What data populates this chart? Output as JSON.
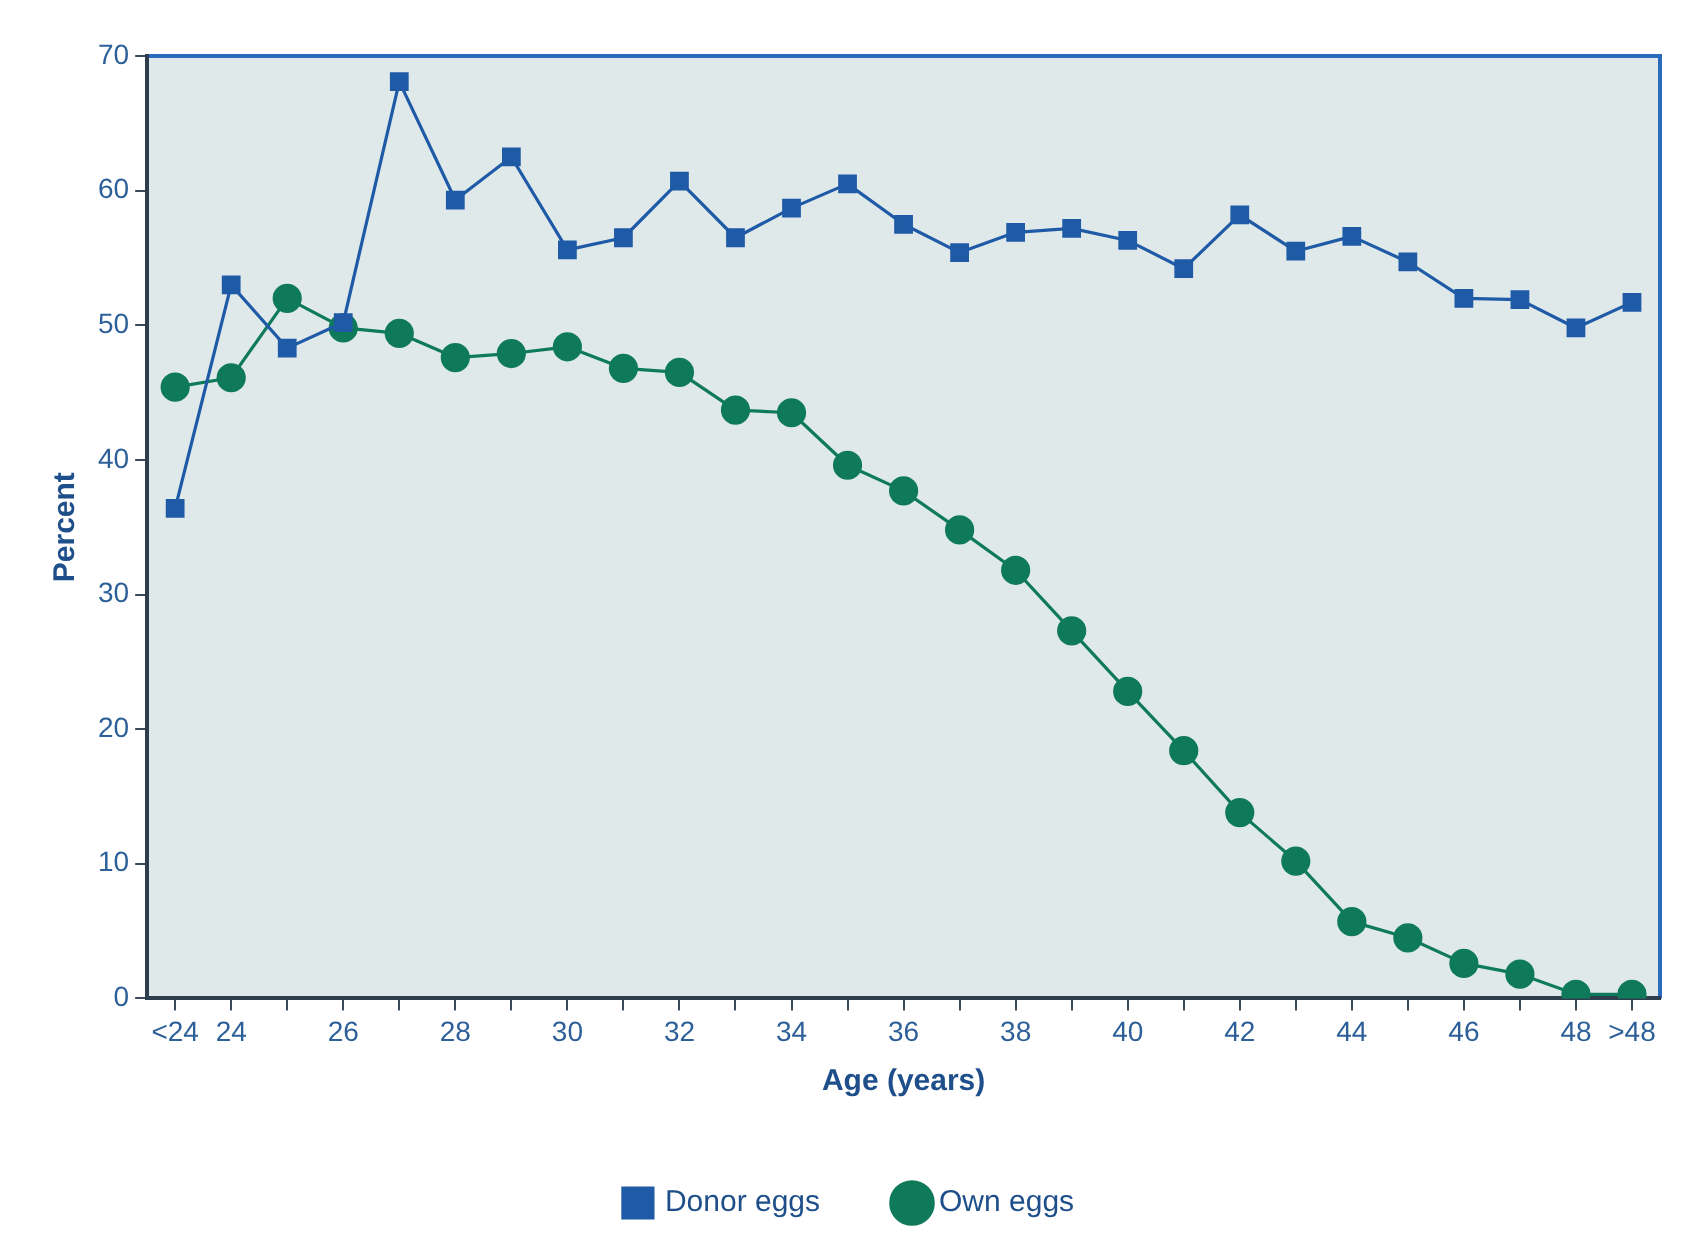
{
  "chart_data": {
    "type": "line",
    "xlabel": "Age (years)",
    "ylabel": "Percent",
    "categories": [
      "<24",
      "24",
      null,
      "26",
      null,
      "28",
      null,
      "30",
      null,
      "32",
      null,
      "34",
      null,
      "36",
      null,
      "38",
      null,
      "40",
      null,
      "42",
      null,
      "44",
      null,
      "46",
      null,
      "48",
      ">48"
    ],
    "ylim": [
      0,
      70
    ],
    "yticks": [
      0,
      10,
      20,
      30,
      40,
      50,
      60,
      70
    ],
    "grid": false,
    "legend": "bottom",
    "line_style": "solid",
    "series": [
      {
        "name": "Donor eggs",
        "color": "#1f5aa6",
        "marker": "square",
        "values": [
          36.4,
          53.0,
          48.3,
          50.2,
          68.1,
          59.3,
          62.5,
          55.6,
          56.5,
          60.7,
          56.5,
          58.7,
          60.5,
          57.5,
          55.4,
          56.9,
          57.2,
          56.3,
          54.2,
          58.2,
          55.5,
          56.6,
          54.7,
          52.0,
          51.9,
          49.8,
          51.7
        ]
      },
      {
        "name": "Own eggs",
        "color": "#0f7a5a",
        "marker": "circle",
        "values": [
          45.4,
          46.1,
          52.0,
          49.8,
          49.4,
          47.6,
          47.9,
          48.4,
          46.8,
          46.5,
          43.7,
          43.5,
          39.6,
          37.7,
          34.8,
          31.8,
          27.3,
          22.8,
          18.4,
          13.8,
          10.2,
          5.7,
          4.5,
          2.6,
          1.8,
          0.3,
          0.3
        ]
      }
    ]
  }
}
